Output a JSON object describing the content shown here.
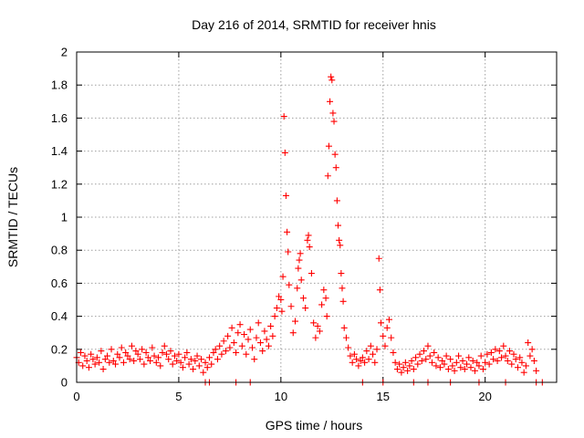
{
  "chart_data": {
    "type": "scatter",
    "title": "Day 216 of 2014, SRMTID for receiver hnis",
    "xlabel": "GPS time / hours",
    "ylabel": "SRMTID / TECUs",
    "xlim": [
      0,
      23.5
    ],
    "ylim": [
      0,
      2
    ],
    "xticks": [
      "0",
      "5",
      "10",
      "15",
      "20"
    ],
    "yticks": [
      "0",
      "0.2",
      "0.4",
      "0.6",
      "0.8",
      "1",
      "1.2",
      "1.4",
      "1.6",
      "1.8",
      "2"
    ],
    "grid": true,
    "marker": "+",
    "series_color": "#ff0000",
    "series": [
      {
        "name": "SRMTID",
        "points": [
          [
            0.0,
            0.15
          ],
          [
            0.1,
            0.12
          ],
          [
            0.2,
            0.18
          ],
          [
            0.3,
            0.1
          ],
          [
            0.4,
            0.16
          ],
          [
            0.5,
            0.13
          ],
          [
            0.6,
            0.09
          ],
          [
            0.7,
            0.17
          ],
          [
            0.8,
            0.14
          ],
          [
            0.9,
            0.11
          ],
          [
            1.0,
            0.15
          ],
          [
            1.1,
            0.12
          ],
          [
            1.2,
            0.19
          ],
          [
            1.3,
            0.08
          ],
          [
            1.4,
            0.14
          ],
          [
            1.5,
            0.16
          ],
          [
            1.6,
            0.12
          ],
          [
            1.7,
            0.2
          ],
          [
            1.8,
            0.13
          ],
          [
            1.9,
            0.11
          ],
          [
            2.0,
            0.17
          ],
          [
            2.1,
            0.15
          ],
          [
            2.2,
            0.21
          ],
          [
            2.3,
            0.12
          ],
          [
            2.4,
            0.18
          ],
          [
            2.5,
            0.16
          ],
          [
            2.6,
            0.14
          ],
          [
            2.7,
            0.22
          ],
          [
            2.8,
            0.13
          ],
          [
            2.9,
            0.19
          ],
          [
            3.0,
            0.17
          ],
          [
            3.1,
            0.14
          ],
          [
            3.2,
            0.2
          ],
          [
            3.3,
            0.11
          ],
          [
            3.4,
            0.18
          ],
          [
            3.5,
            0.15
          ],
          [
            3.6,
            0.13
          ],
          [
            3.7,
            0.21
          ],
          [
            3.8,
            0.16
          ],
          [
            3.9,
            0.12
          ],
          [
            4.0,
            0.15
          ],
          [
            4.1,
            0.1
          ],
          [
            4.2,
            0.18
          ],
          [
            4.3,
            0.22
          ],
          [
            4.4,
            0.17
          ],
          [
            4.5,
            0.14
          ],
          [
            4.6,
            0.19
          ],
          [
            4.7,
            0.11
          ],
          [
            4.8,
            0.16
          ],
          [
            4.9,
            0.13
          ],
          [
            5.0,
            0.17
          ],
          [
            5.1,
            0.12
          ],
          [
            5.2,
            0.09
          ],
          [
            5.3,
            0.15
          ],
          [
            5.4,
            0.18
          ],
          [
            5.5,
            0.11
          ],
          [
            5.6,
            0.14
          ],
          [
            5.7,
            0.08
          ],
          [
            5.8,
            0.13
          ],
          [
            5.9,
            0.16
          ],
          [
            6.0,
            0.1
          ],
          [
            6.1,
            0.14
          ],
          [
            6.2,
            0.06
          ],
          [
            6.3,
            0.12
          ],
          [
            6.4,
            0.09
          ],
          [
            6.5,
            0.15
          ],
          [
            6.6,
            0.11
          ],
          [
            6.7,
            0.18
          ],
          [
            6.8,
            0.2
          ],
          [
            6.9,
            0.14
          ],
          [
            7.0,
            0.22
          ],
          [
            7.1,
            0.17
          ],
          [
            7.2,
            0.25
          ],
          [
            7.3,
            0.19
          ],
          [
            7.4,
            0.28
          ],
          [
            7.5,
            0.21
          ],
          [
            7.6,
            0.33
          ],
          [
            7.7,
            0.24
          ],
          [
            7.8,
            0.18
          ],
          [
            7.9,
            0.3
          ],
          [
            8.0,
            0.35
          ],
          [
            8.1,
            0.22
          ],
          [
            8.2,
            0.29
          ],
          [
            8.3,
            0.17
          ],
          [
            8.4,
            0.26
          ],
          [
            8.5,
            0.32
          ],
          [
            8.6,
            0.21
          ],
          [
            8.7,
            0.14
          ],
          [
            8.8,
            0.27
          ],
          [
            8.9,
            0.36
          ],
          [
            9.0,
            0.24
          ],
          [
            9.1,
            0.19
          ],
          [
            9.2,
            0.31
          ],
          [
            9.3,
            0.26
          ],
          [
            9.4,
            0.22
          ],
          [
            9.5,
            0.34
          ],
          [
            9.6,
            0.28
          ],
          [
            9.7,
            0.4
          ],
          [
            9.8,
            0.45
          ],
          [
            9.9,
            0.52
          ],
          [
            10.0,
            0.5
          ],
          [
            10.05,
            0.43
          ],
          [
            10.1,
            0.64
          ],
          [
            10.15,
            1.61
          ],
          [
            10.2,
            1.39
          ],
          [
            10.25,
            1.13
          ],
          [
            10.3,
            0.91
          ],
          [
            10.35,
            0.79
          ],
          [
            10.4,
            0.59
          ],
          [
            10.5,
            0.46
          ],
          [
            10.6,
            0.3
          ],
          [
            10.7,
            0.37
          ],
          [
            10.8,
            0.57
          ],
          [
            10.85,
            0.69
          ],
          [
            10.9,
            0.74
          ],
          [
            10.95,
            0.78
          ],
          [
            11.0,
            0.62
          ],
          [
            11.1,
            0.51
          ],
          [
            11.2,
            0.45
          ],
          [
            11.3,
            0.86
          ],
          [
            11.35,
            0.89
          ],
          [
            11.4,
            0.82
          ],
          [
            11.5,
            0.66
          ],
          [
            11.6,
            0.36
          ],
          [
            11.7,
            0.27
          ],
          [
            11.8,
            0.34
          ],
          [
            11.9,
            0.31
          ],
          [
            12.0,
            0.47
          ],
          [
            12.1,
            0.56
          ],
          [
            12.2,
            0.51
          ],
          [
            12.25,
            0.4
          ],
          [
            12.3,
            1.25
          ],
          [
            12.35,
            1.43
          ],
          [
            12.4,
            1.7
          ],
          [
            12.45,
            1.85
          ],
          [
            12.5,
            1.83
          ],
          [
            12.55,
            1.63
          ],
          [
            12.6,
            1.58
          ],
          [
            12.65,
            1.38
          ],
          [
            12.7,
            1.3
          ],
          [
            12.75,
            1.1
          ],
          [
            12.8,
            0.95
          ],
          [
            12.85,
            0.86
          ],
          [
            12.9,
            0.83
          ],
          [
            12.95,
            0.66
          ],
          [
            13.0,
            0.57
          ],
          [
            13.05,
            0.49
          ],
          [
            13.1,
            0.33
          ],
          [
            13.2,
            0.27
          ],
          [
            13.3,
            0.21
          ],
          [
            13.4,
            0.16
          ],
          [
            13.5,
            0.12
          ],
          [
            13.6,
            0.17
          ],
          [
            13.7,
            0.14
          ],
          [
            13.8,
            0.1
          ],
          [
            13.9,
            0.13
          ],
          [
            14.0,
            0.15
          ],
          [
            14.1,
            0.12
          ],
          [
            14.2,
            0.19
          ],
          [
            14.3,
            0.14
          ],
          [
            14.4,
            0.22
          ],
          [
            14.5,
            0.17
          ],
          [
            14.6,
            0.12
          ],
          [
            14.7,
            0.2
          ],
          [
            14.8,
            0.75
          ],
          [
            14.85,
            0.56
          ],
          [
            14.9,
            0.36
          ],
          [
            15.0,
            0.28
          ],
          [
            15.1,
            0.22
          ],
          [
            15.2,
            0.33
          ],
          [
            15.3,
            0.38
          ],
          [
            15.4,
            0.27
          ],
          [
            15.5,
            0.18
          ],
          [
            15.6,
            0.12
          ],
          [
            15.7,
            0.08
          ],
          [
            15.8,
            0.11
          ],
          [
            15.9,
            0.06
          ],
          [
            16.0,
            0.09
          ],
          [
            16.1,
            0.12
          ],
          [
            16.2,
            0.07
          ],
          [
            16.3,
            0.1
          ],
          [
            16.4,
            0.13
          ],
          [
            16.5,
            0.08
          ],
          [
            16.6,
            0.15
          ],
          [
            16.7,
            0.11
          ],
          [
            16.8,
            0.17
          ],
          [
            16.9,
            0.13
          ],
          [
            17.0,
            0.19
          ],
          [
            17.1,
            0.14
          ],
          [
            17.2,
            0.22
          ],
          [
            17.3,
            0.16
          ],
          [
            17.4,
            0.12
          ],
          [
            17.5,
            0.18
          ],
          [
            17.6,
            0.1
          ],
          [
            17.7,
            0.15
          ],
          [
            17.8,
            0.09
          ],
          [
            17.9,
            0.13
          ],
          [
            18.0,
            0.11
          ],
          [
            18.1,
            0.16
          ],
          [
            18.2,
            0.08
          ],
          [
            18.3,
            0.14
          ],
          [
            18.4,
            0.1
          ],
          [
            18.5,
            0.07
          ],
          [
            18.6,
            0.12
          ],
          [
            18.7,
            0.16
          ],
          [
            18.8,
            0.09
          ],
          [
            18.9,
            0.13
          ],
          [
            19.0,
            0.08
          ],
          [
            19.1,
            0.11
          ],
          [
            19.2,
            0.15
          ],
          [
            19.3,
            0.09
          ],
          [
            19.4,
            0.13
          ],
          [
            19.5,
            0.07
          ],
          [
            19.6,
            0.12
          ],
          [
            19.7,
            0.1
          ],
          [
            19.8,
            0.16
          ],
          [
            19.9,
            0.08
          ],
          [
            20.0,
            0.12
          ],
          [
            20.1,
            0.17
          ],
          [
            20.2,
            0.11
          ],
          [
            20.3,
            0.18
          ],
          [
            20.4,
            0.14
          ],
          [
            20.5,
            0.2
          ],
          [
            20.6,
            0.13
          ],
          [
            20.7,
            0.19
          ],
          [
            20.8,
            0.15
          ],
          [
            20.9,
            0.22
          ],
          [
            21.0,
            0.16
          ],
          [
            21.1,
            0.13
          ],
          [
            21.2,
            0.19
          ],
          [
            21.3,
            0.11
          ],
          [
            21.4,
            0.17
          ],
          [
            21.5,
            0.14
          ],
          [
            21.6,
            0.09
          ],
          [
            21.7,
            0.15
          ],
          [
            21.8,
            0.12
          ],
          [
            21.9,
            0.06
          ],
          [
            22.0,
            0.1
          ],
          [
            22.1,
            0.24
          ],
          [
            22.2,
            0.16
          ],
          [
            22.3,
            0.2
          ],
          [
            22.4,
            0.13
          ],
          [
            22.5,
            0.07
          ],
          [
            6.3,
            0.0
          ],
          [
            6.5,
            0.0
          ],
          [
            7.8,
            0.0
          ],
          [
            8.5,
            0.0
          ],
          [
            14.0,
            0.0
          ],
          [
            15.0,
            0.0
          ],
          [
            16.5,
            0.0
          ],
          [
            17.2,
            0.0
          ],
          [
            18.3,
            0.0
          ],
          [
            19.7,
            0.0
          ],
          [
            21.0,
            0.0
          ],
          [
            22.5,
            0.0
          ],
          [
            22.8,
            0.0
          ]
        ]
      }
    ]
  }
}
